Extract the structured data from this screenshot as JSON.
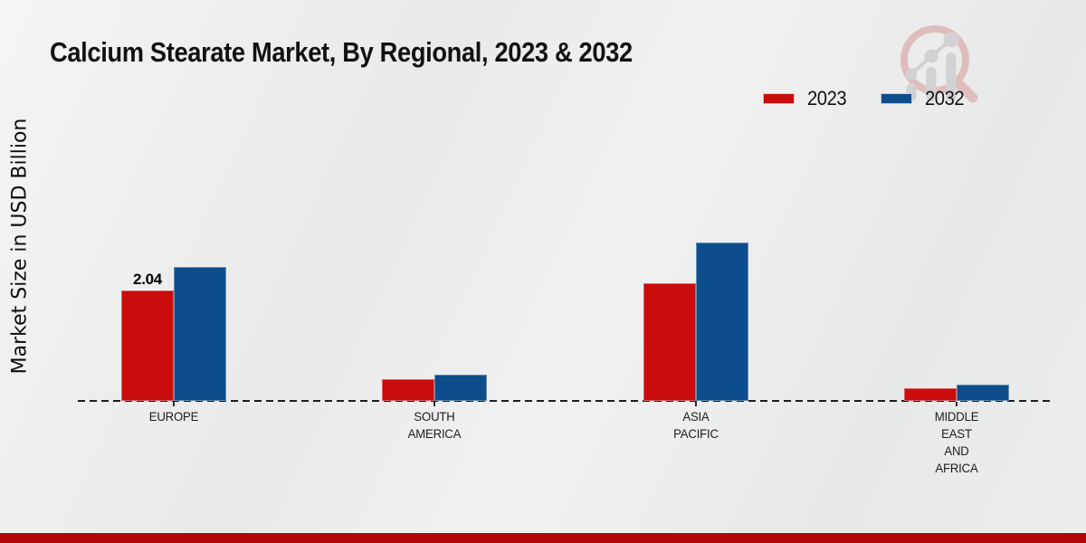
{
  "title": "Calcium Stearate Market, By Regional, 2023 & 2032",
  "y_axis_label": "Market Size in USD Billion",
  "legend": [
    {
      "label": "2023",
      "color": "#c90c0c"
    },
    {
      "label": "2032",
      "color": "#0e4d8c"
    }
  ],
  "chart_data": {
    "type": "bar",
    "categories": [
      "EUROPE",
      "SOUTH AMERICA",
      "ASIA PACIFIC",
      "MIDDLE EAST AND AFRICA"
    ],
    "category_lines": [
      [
        "EUROPE"
      ],
      [
        "SOUTH",
        "AMERICA"
      ],
      [
        "ASIA",
        "PACIFIC"
      ],
      [
        "MIDDLE",
        "EAST",
        "AND",
        "AFRICA"
      ]
    ],
    "series": [
      {
        "name": "2023",
        "color": "#c90c0c",
        "values": [
          2.04,
          0.4,
          2.17,
          0.23
        ]
      },
      {
        "name": "2032",
        "color": "#0e4d8c",
        "values": [
          2.47,
          0.48,
          2.92,
          0.3
        ]
      }
    ],
    "data_labels": [
      {
        "series_index": 0,
        "category_index": 0,
        "text": "2.04"
      }
    ],
    "title": "Calcium Stearate Market, By Regional, 2023 & 2032",
    "xlabel": "",
    "ylabel": "Market Size in USD Billion",
    "ylim": [
      0,
      3
    ],
    "grid": false,
    "legend_position": "top-right",
    "baseline_style": "dashed"
  },
  "branding": {
    "logo_name": "magnifier-growth-chart-logo",
    "logo_ring_color": "#e0bdbd",
    "logo_bars_color": "#d2d2d4",
    "bottom_band_color": "#b20707"
  }
}
